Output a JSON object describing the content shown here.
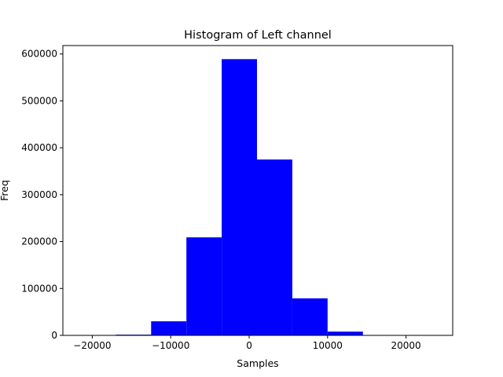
{
  "chart_data": {
    "type": "bar",
    "title": "Histogram of Left channel",
    "xlabel": "Samples",
    "ylabel": "Freq",
    "xlim": [
      -23750,
      25950
    ],
    "ylim": [
      0,
      618000
    ],
    "bin_edges": [
      -21500,
      -17000,
      -12500,
      -8000,
      -3500,
      1000,
      5500,
      10000,
      14500,
      19000,
      23500
    ],
    "values": [
      0,
      1500,
      30000,
      209000,
      589000,
      375000,
      79000,
      8000,
      400,
      0
    ],
    "x_ticks": [
      -20000,
      -10000,
      0,
      10000,
      20000
    ],
    "x_tick_labels": [
      "−20000",
      "−10000",
      "0",
      "10000",
      "20000"
    ],
    "y_ticks": [
      0,
      100000,
      200000,
      300000,
      400000,
      500000,
      600000
    ],
    "y_tick_labels": [
      "0",
      "100000",
      "200000",
      "300000",
      "400000",
      "500000",
      "600000"
    ],
    "bar_color": "#0000ff",
    "grid": false,
    "legend": null
  }
}
